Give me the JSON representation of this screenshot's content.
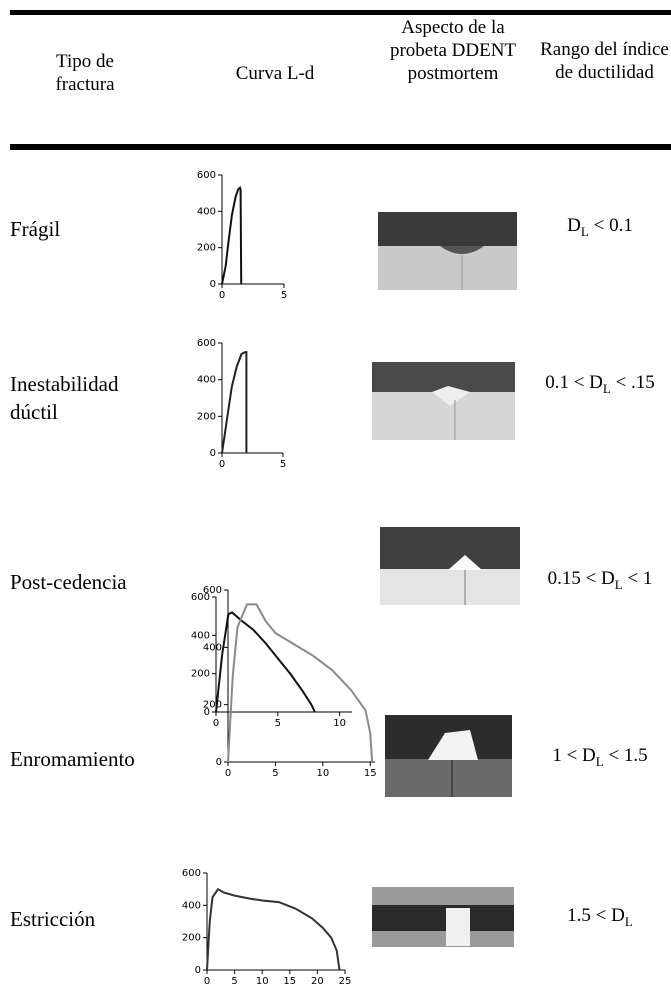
{
  "table": {
    "header": [
      "Tipo de fractura",
      "Curva L-d",
      "Aspecto de la probeta DDENT postmortem",
      "Rango del índice de ductilidad"
    ],
    "rows": [
      {
        "type": "Frágil",
        "chart": {
          "type": "line",
          "color": "#111111",
          "xlim": [
            0,
            5
          ],
          "ylim": [
            0,
            600
          ],
          "xticks": [
            0,
            5
          ],
          "yticks": [
            0,
            200,
            400,
            600
          ],
          "x": [
            0,
            0.3,
            0.5,
            0.8,
            1.1,
            1.3,
            1.45,
            1.5,
            1.55
          ],
          "y": [
            0,
            100,
            220,
            380,
            480,
            520,
            530,
            520,
            0
          ]
        },
        "range": {
          "symbol": "D",
          "subscript": "L",
          "after": "< 0.1"
        }
      },
      {
        "type": "Inestabilidad dúctil",
        "chart": {
          "type": "line",
          "color": "#222222",
          "xlim": [
            0,
            5
          ],
          "ylim": [
            0,
            600
          ],
          "xticks": [
            0,
            5
          ],
          "yticks": [
            0,
            200,
            400,
            600
          ],
          "x": [
            0,
            0.4,
            0.8,
            1.2,
            1.6,
            1.9,
            2.0,
            2.0
          ],
          "y": [
            0,
            180,
            360,
            470,
            540,
            550,
            550,
            0
          ]
        },
        "range": {
          "before": "0.1 <",
          "symbol": "D",
          "subscript": "L",
          "after": "< .15"
        }
      },
      {
        "type": "Post-cedencia",
        "chart": {
          "type": "line",
          "color": "#111111",
          "xlim": [
            0,
            11
          ],
          "ylim": [
            0,
            600
          ],
          "xticks": [
            0,
            5,
            10
          ],
          "yticks": [
            0,
            200,
            400,
            600
          ],
          "x": [
            0,
            0.5,
            1,
            1.3,
            2,
            3,
            4,
            5,
            6,
            7,
            7.7,
            8
          ],
          "y": [
            0,
            300,
            510,
            520,
            480,
            430,
            360,
            280,
            200,
            110,
            40,
            0
          ]
        },
        "range": {
          "before": "0.15 <",
          "symbol": "D",
          "subscript": "L",
          "after": "< 1"
        }
      },
      {
        "type": "Enromamiento",
        "chart": {
          "type": "line",
          "color": "#8a8a8a",
          "xlim": [
            0,
            15.5
          ],
          "ylim": [
            0,
            600
          ],
          "xticks": [
            0,
            5,
            10,
            15
          ],
          "yticks": [
            0,
            200,
            400,
            600
          ],
          "x": [
            0,
            0.5,
            1,
            2,
            3,
            4,
            5,
            6,
            7,
            9,
            11,
            13,
            14.5,
            15,
            15.2
          ],
          "y": [
            0,
            300,
            470,
            550,
            550,
            490,
            450,
            430,
            410,
            370,
            320,
            250,
            180,
            100,
            0
          ]
        },
        "range": {
          "before": "1 <",
          "symbol": "D",
          "subscript": "L",
          "after": "< 1.5"
        }
      },
      {
        "type": "Estricción",
        "chart": {
          "type": "line",
          "color": "#333333",
          "xlim": [
            0,
            25
          ],
          "ylim": [
            0,
            600
          ],
          "xticks": [
            0,
            5,
            10,
            15,
            20,
            25
          ],
          "yticks": [
            0,
            200,
            400,
            600
          ],
          "x": [
            0,
            0.5,
            1,
            2,
            3,
            5,
            8,
            10,
            13,
            16,
            19,
            21,
            22.5,
            23.5,
            24
          ],
          "y": [
            0,
            300,
            450,
            500,
            480,
            460,
            440,
            430,
            420,
            380,
            320,
            260,
            200,
            120,
            0
          ]
        },
        "range": {
          "before": "1.5 <",
          "symbol": "D",
          "subscript": "L"
        }
      }
    ]
  }
}
